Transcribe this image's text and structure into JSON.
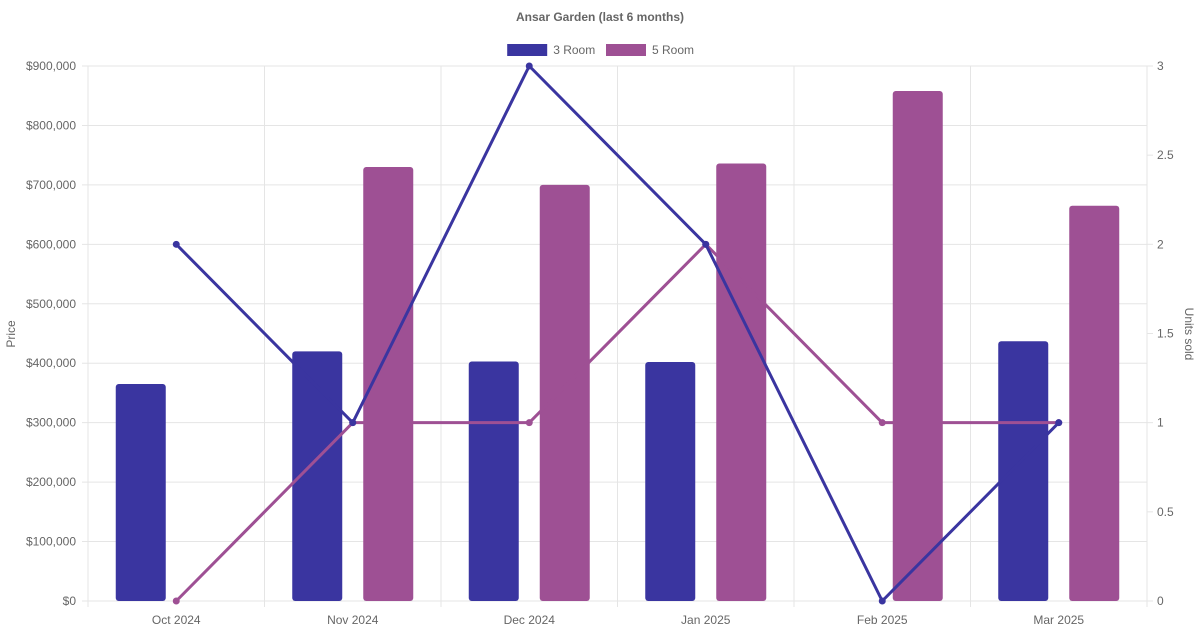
{
  "chart_data": {
    "type": "bar",
    "title": "Ansar Garden (last 6 months)",
    "categories": [
      "Oct 2024",
      "Nov 2024",
      "Dec 2024",
      "Jan 2025",
      "Feb 2025",
      "Mar 2025"
    ],
    "ylabel": "Price",
    "y2label": "Units sold",
    "ylim": [
      0,
      900000
    ],
    "y2lim": [
      0,
      3
    ],
    "yticks": [
      "$0",
      "$100,000",
      "$200,000",
      "$300,000",
      "$400,000",
      "$500,000",
      "$600,000",
      "$700,000",
      "$800,000",
      "$900,000"
    ],
    "y2ticks": [
      "0",
      "0.5",
      "1",
      "1.5",
      "2",
      "2.5",
      "3"
    ],
    "legend_position": "top-center",
    "grid": true,
    "series": [
      {
        "name": "3 Room",
        "color": "#3a35a0",
        "price": [
          365000,
          420000,
          403000,
          402000,
          null,
          437000
        ],
        "units_sold": [
          2,
          1,
          3,
          2,
          0,
          1
        ]
      },
      {
        "name": "5 Room",
        "color": "#9e5094",
        "price": [
          null,
          730000,
          700000,
          736000,
          858000,
          665000
        ],
        "units_sold": [
          0,
          1,
          1,
          2,
          1,
          1
        ]
      }
    ]
  }
}
